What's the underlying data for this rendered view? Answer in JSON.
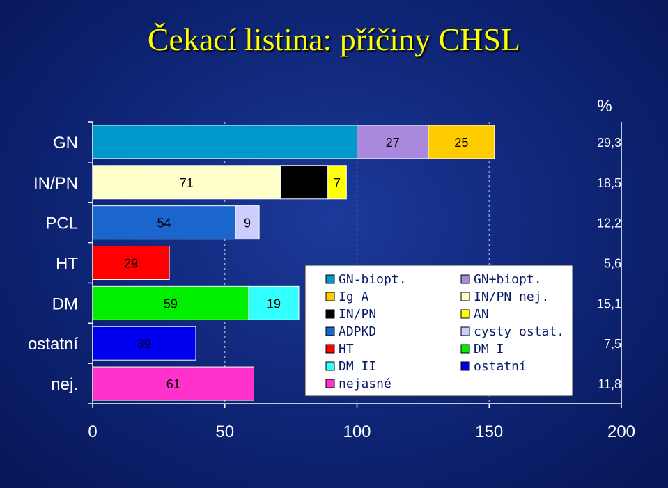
{
  "title": "Čekací listina: příčiny CHSL",
  "unit_label": "%",
  "chart_data": {
    "type": "bar",
    "stacked": true,
    "orientation": "horizontal",
    "categories": [
      "GN",
      "IN/PN",
      "PCL",
      "HT",
      "DM",
      "ostatní",
      "nej."
    ],
    "percentages": [
      "29,3",
      "18,5",
      "12,2",
      "5,6",
      "15,1",
      "7,5",
      "11,8"
    ],
    "xlim": [
      0,
      200
    ],
    "xticks": [
      "0",
      "50",
      "100",
      "150",
      "200"
    ],
    "grid": "x",
    "legend_position": "center-right",
    "series": [
      {
        "name": "GN-biopt.",
        "color": "#0099cc",
        "values": [
          100,
          null,
          null,
          null,
          null,
          null,
          null
        ],
        "labels": [
          "",
          "",
          "",
          "",
          "",
          "",
          ""
        ]
      },
      {
        "name": "GN+biopt.",
        "color": "#aa88dd",
        "values": [
          27,
          null,
          null,
          null,
          null,
          null,
          null
        ],
        "labels": [
          "27",
          "",
          "",
          "",
          "",
          "",
          ""
        ]
      },
      {
        "name": "Ig A",
        "color": "#ffcc00",
        "values": [
          25,
          null,
          null,
          null,
          null,
          null,
          null
        ],
        "labels": [
          "25",
          "",
          "",
          "",
          "",
          "",
          ""
        ]
      },
      {
        "name": "IN/PN nej.",
        "color": "#ffffcc",
        "values": [
          null,
          71,
          null,
          null,
          null,
          null,
          null
        ],
        "labels": [
          "",
          "71",
          "",
          "",
          "",
          "",
          ""
        ]
      },
      {
        "name": "IN/PN",
        "color": "#000000",
        "values": [
          null,
          18,
          null,
          null,
          null,
          null,
          null
        ],
        "labels": [
          "",
          "18",
          "",
          "",
          "",
          "",
          ""
        ]
      },
      {
        "name": "AN",
        "color": "#ffff00",
        "values": [
          null,
          7,
          null,
          null,
          null,
          null,
          null
        ],
        "labels": [
          "",
          "7",
          "",
          "",
          "",
          "",
          ""
        ]
      },
      {
        "name": "ADPKD",
        "color": "#1a66cc",
        "values": [
          null,
          null,
          54,
          null,
          null,
          null,
          null
        ],
        "labels": [
          "",
          "",
          "54",
          "",
          "",
          "",
          ""
        ]
      },
      {
        "name": "cysty ostat.",
        "color": "#ccccff",
        "values": [
          null,
          null,
          9,
          null,
          null,
          null,
          null
        ],
        "labels": [
          "",
          "",
          "9",
          "",
          "",
          "",
          ""
        ]
      },
      {
        "name": "HT",
        "color": "#ff0000",
        "values": [
          null,
          null,
          null,
          29,
          null,
          null,
          null
        ],
        "labels": [
          "",
          "",
          "",
          "29",
          "",
          "",
          ""
        ]
      },
      {
        "name": "DM I",
        "color": "#00ee00",
        "values": [
          null,
          null,
          null,
          null,
          59,
          null,
          null
        ],
        "labels": [
          "",
          "",
          "",
          "",
          "59",
          "",
          ""
        ]
      },
      {
        "name": "DM II",
        "color": "#33ffff",
        "values": [
          null,
          null,
          null,
          null,
          19,
          null,
          null
        ],
        "labels": [
          "",
          "",
          "",
          "",
          "19",
          "",
          ""
        ]
      },
      {
        "name": "ostatní",
        "color": "#0000ee",
        "values": [
          null,
          null,
          null,
          null,
          null,
          39,
          null
        ],
        "labels": [
          "",
          "",
          "",
          "",
          "",
          "39",
          ""
        ]
      },
      {
        "name": "nejasné",
        "color": "#ff33cc",
        "values": [
          null,
          null,
          null,
          null,
          null,
          null,
          61
        ],
        "labels": [
          "",
          "",
          "",
          "",
          "",
          "",
          "61"
        ]
      }
    ],
    "legend_order": [
      "GN-biopt.",
      "GN+biopt.",
      "Ig A",
      "IN/PN nej.",
      "IN/PN",
      "AN",
      "ADPKD",
      "cysty ostat.",
      "HT",
      "DM I",
      "DM II",
      "ostatní",
      "nejasné"
    ]
  }
}
